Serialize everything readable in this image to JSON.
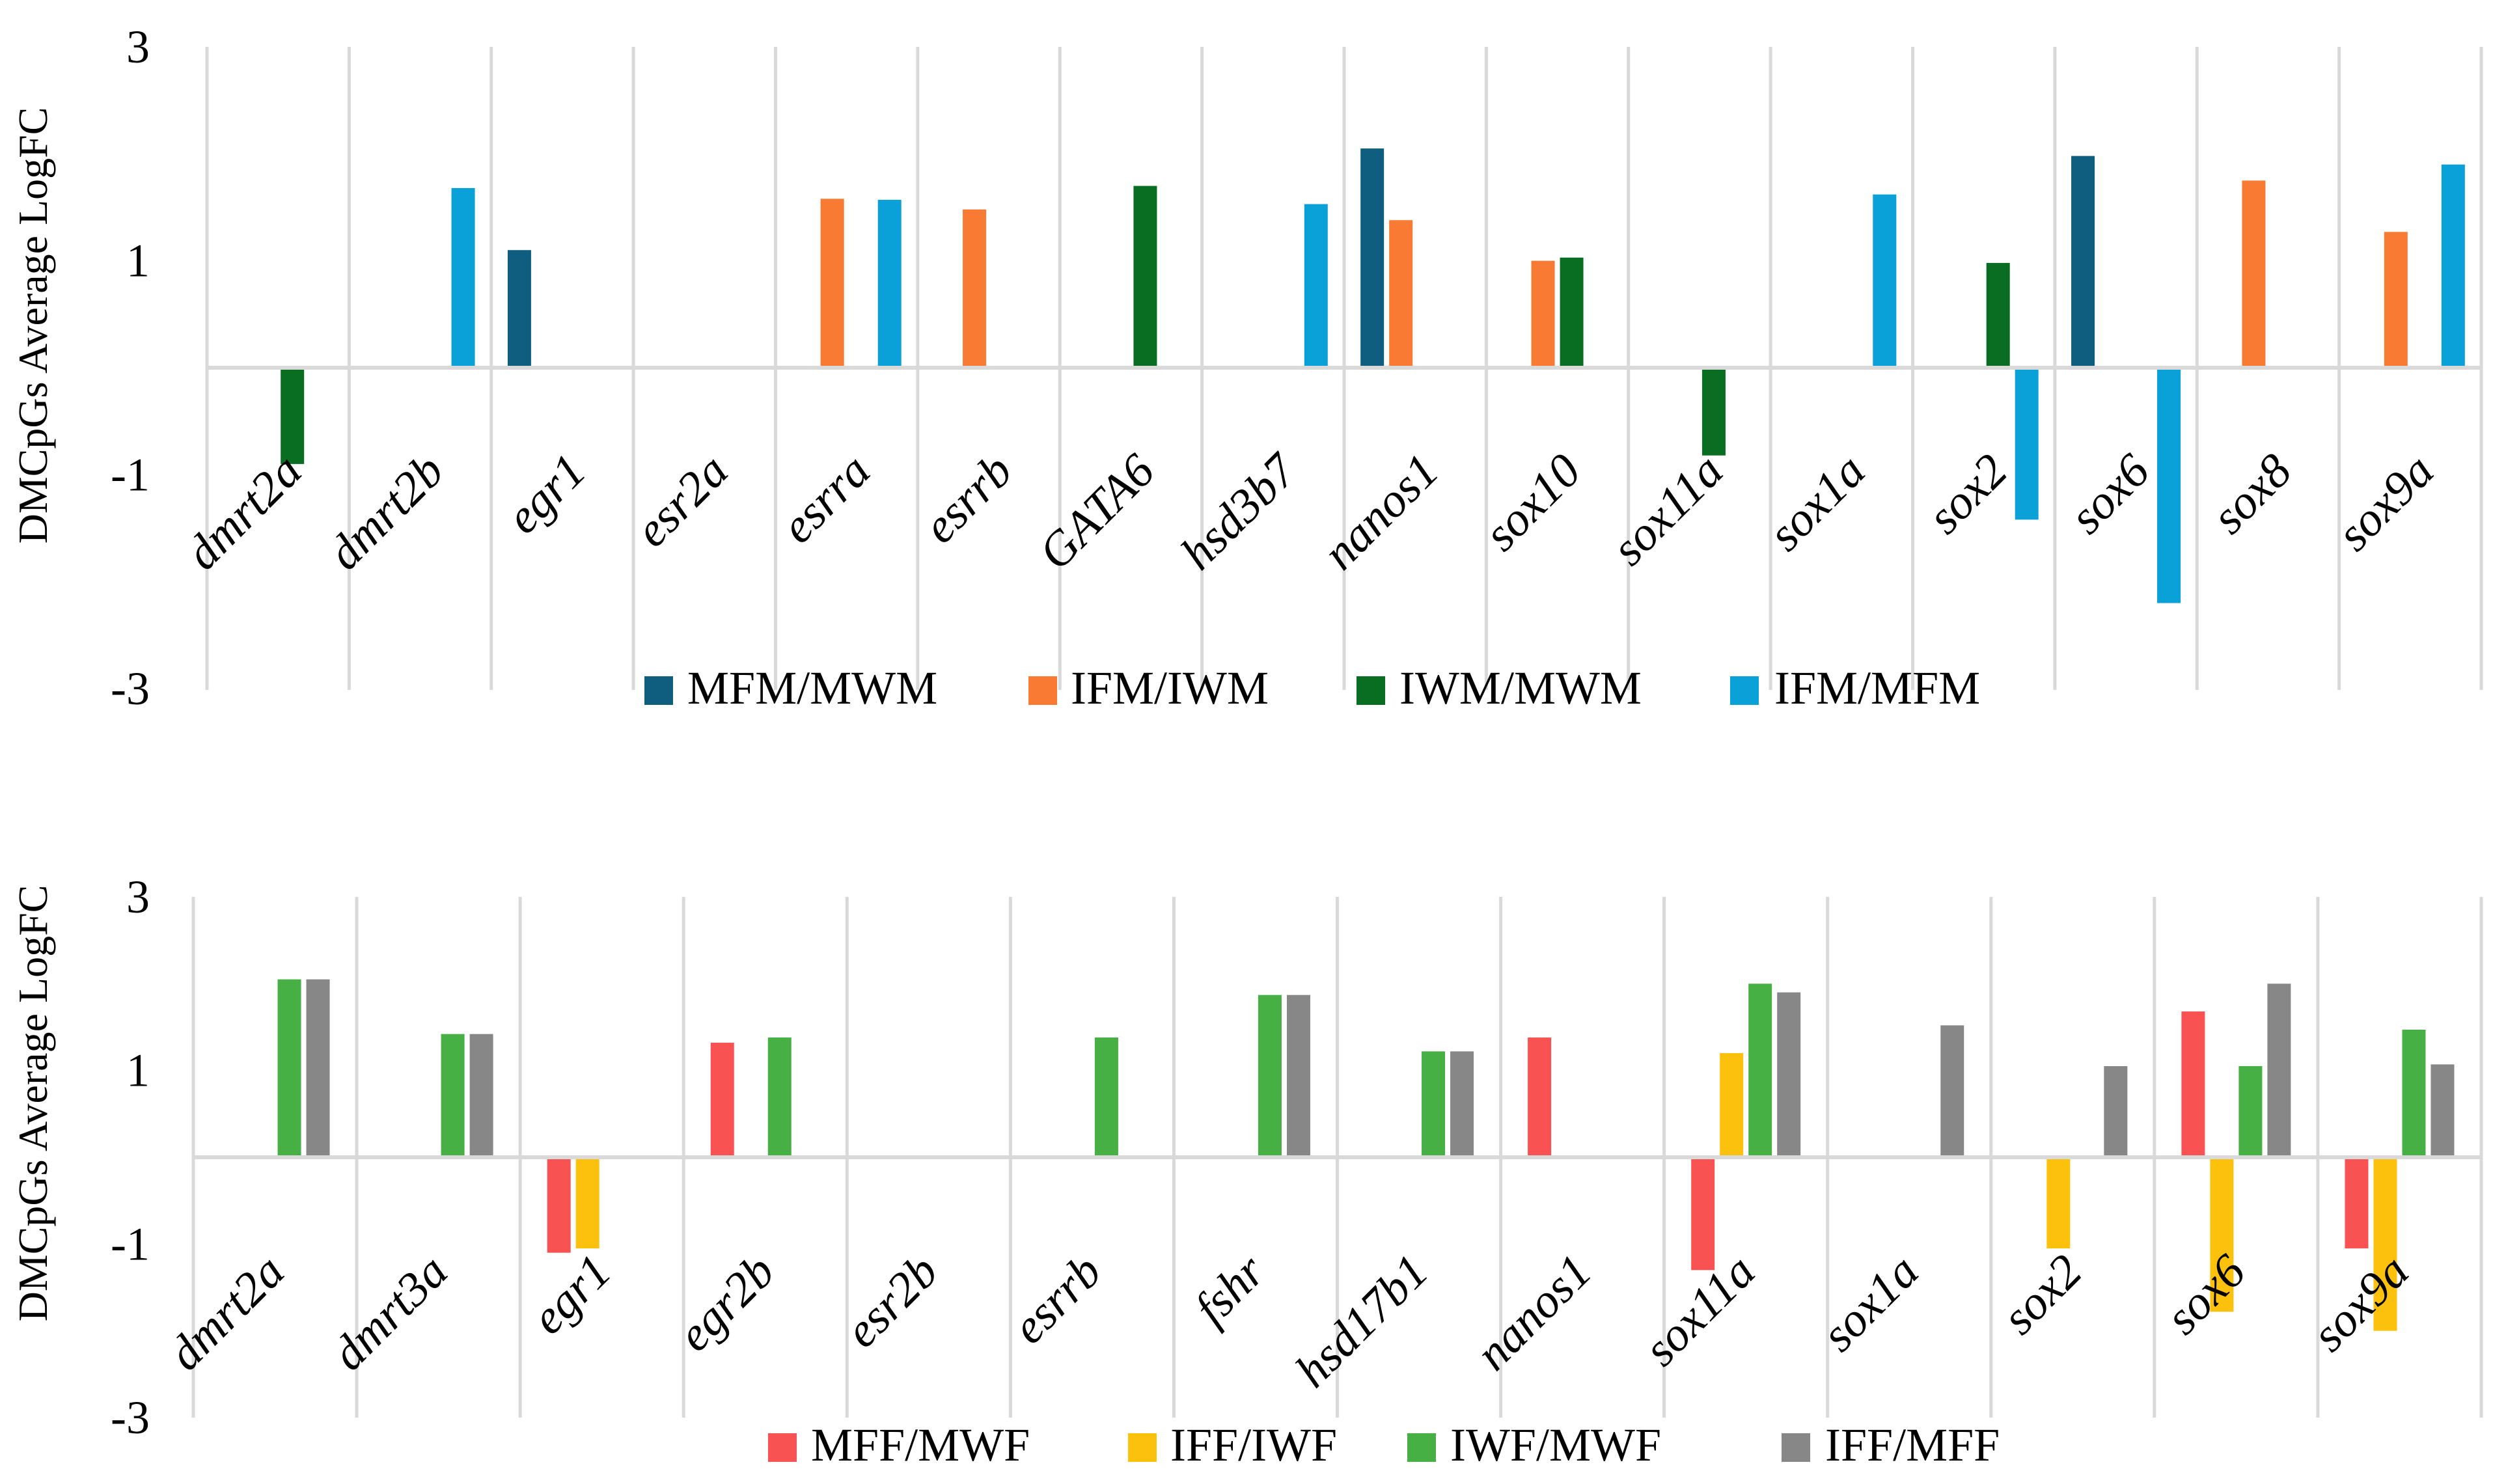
{
  "chart_data": [
    {
      "type": "bar",
      "title": "",
      "xlabel": "",
      "ylabel": "DMCpGs Average LogFC",
      "ylim": [
        -3,
        3
      ],
      "yticks": [
        "3",
        "1",
        "-1",
        "-3"
      ],
      "grid": "vertical",
      "legend_position": "bottom",
      "categories": [
        "dmrt2a",
        "dmrt2b",
        "egr1",
        "esr2a",
        "esrra",
        "esrrb",
        "GATA6",
        "hsd3b7",
        "nanos1",
        "sox10",
        "sox11a",
        "sox1a",
        "sox2",
        "sox6",
        "sox8",
        "sox9a"
      ],
      "series": [
        {
          "name": "MFM/MWM",
          "color": "#0f5e80",
          "values": [
            0,
            0,
            1.1,
            0,
            0,
            0,
            0,
            0,
            2.05,
            0,
            0,
            0,
            0,
            1.98,
            0,
            0
          ]
        },
        {
          "name": "IFM/IWM",
          "color": "#f97a33",
          "values": [
            0,
            0,
            0,
            0,
            1.58,
            1.48,
            0,
            0,
            1.38,
            1.0,
            0,
            0,
            0,
            0,
            1.75,
            1.27
          ]
        },
        {
          "name": "IWM/MWM",
          "color": "#0a6e22",
          "values": [
            -0.9,
            0,
            0,
            0,
            0,
            0,
            1.7,
            0,
            0,
            1.03,
            -0.82,
            0,
            0.98,
            0,
            0,
            0
          ]
        },
        {
          "name": "IFM/MFM",
          "color": "#0aa0d8",
          "values": [
            0,
            1.68,
            0,
            0,
            1.57,
            0,
            0,
            1.53,
            0,
            0,
            0,
            1.62,
            -1.42,
            -2.2,
            0,
            1.9
          ]
        }
      ]
    },
    {
      "type": "bar",
      "title": "",
      "xlabel": "",
      "ylabel": "DMCpGs Average LogFC",
      "ylim": [
        -3,
        3
      ],
      "yticks": [
        "3",
        "1",
        "-1",
        "-3"
      ],
      "grid": "vertical",
      "legend_position": "bottom",
      "categories": [
        "dmrt2a",
        "dmrt3a",
        "egr1",
        "egr2b",
        "esr2b",
        "esrrb",
        "fshr",
        "hsd17b1",
        "nanos1",
        "sox11a",
        "sox1a",
        "sox2",
        "sox6",
        "sox9a"
      ],
      "series": [
        {
          "name": "MFF/MWF",
          "color": "#f95252",
          "values": [
            0,
            0,
            -1.1,
            1.32,
            0,
            0,
            0,
            0,
            1.38,
            -1.3,
            0,
            0,
            1.68,
            -1.05
          ]
        },
        {
          "name": "IFF/IWF",
          "color": "#fbc10c",
          "values": [
            0,
            0,
            -1.05,
            0,
            0,
            0,
            0,
            0,
            0,
            1.2,
            0,
            -1.05,
            -1.78,
            -2.0
          ]
        },
        {
          "name": "IWF/MWF",
          "color": "#47b045",
          "values": [
            2.05,
            1.42,
            0,
            1.38,
            0,
            1.38,
            1.87,
            1.22,
            0,
            2.0,
            0,
            0,
            1.05,
            1.47
          ]
        },
        {
          "name": "IFF/MFF",
          "color": "#878787",
          "values": [
            2.05,
            1.42,
            0,
            0,
            0,
            0,
            1.87,
            1.22,
            0,
            1.9,
            1.52,
            1.05,
            2.0,
            1.07
          ]
        }
      ]
    }
  ]
}
